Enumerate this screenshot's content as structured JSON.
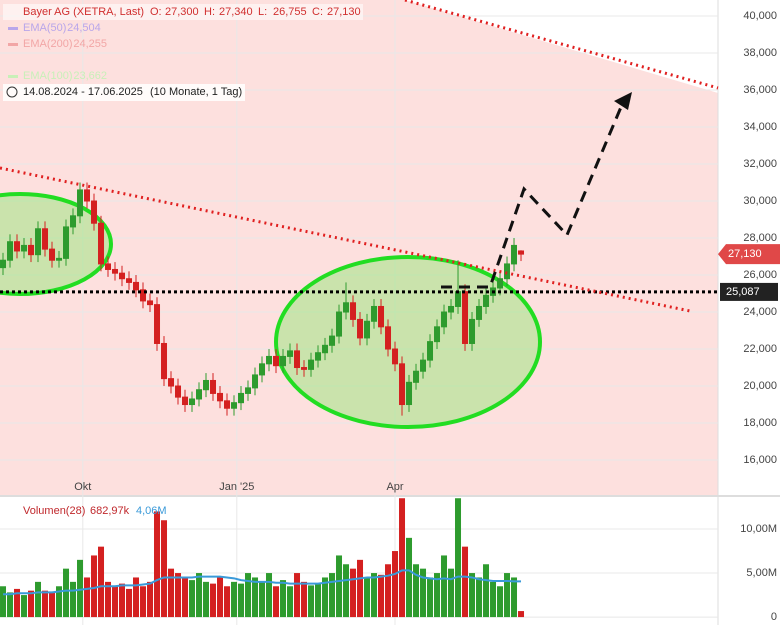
{
  "chart_data": [
    {
      "type": "candlestick",
      "title": "Bayer AG (XETRA, Last)",
      "ohlc_legend": [
        {
          "name": "O:",
          "value": 27.3,
          "label": "27,300"
        },
        {
          "name": "H:",
          "value": 27.34,
          "label": "27,340"
        },
        {
          "name": "L:",
          "value": 26.755,
          "label": "26,755"
        },
        {
          "name": "C:",
          "value": 27.13,
          "label": "27,130"
        }
      ],
      "legend": [
        {
          "name": "EMA(50)",
          "value": 24.504,
          "label": "24,504",
          "color": "#b9a6ea"
        },
        {
          "name": "EMA(200)",
          "value": 24.255,
          "label": "24,255",
          "color": "#f2a6a6"
        },
        {
          "name": "EMA(100)",
          "value": 23.662,
          "label": "23,662",
          "color": "#c8f0b8"
        }
      ],
      "range_text": "14.08.2024 - 17.06.2025",
      "range_note": "(10 Monate, 1 Tag)",
      "open": [
        26.4,
        26.8,
        27.8,
        27.3,
        27.6,
        27.1,
        28.5,
        27.4,
        26.8,
        26.9,
        28.6,
        29.2,
        30.6,
        30.0,
        28.8,
        26.6,
        26.3,
        26.1,
        25.8,
        25.6,
        25.2,
        24.6,
        24.4,
        22.3,
        20.4,
        20.0,
        19.4,
        19.0,
        19.3,
        19.8,
        20.3,
        19.6,
        19.2,
        18.8,
        19.1,
        19.6,
        19.9,
        20.6,
        21.2,
        21.6,
        21.1,
        21.6,
        21.9,
        21.0,
        20.9,
        21.4,
        21.8,
        22.2,
        22.7,
        24.0,
        24.5,
        23.6,
        22.6,
        23.5,
        24.3,
        23.2,
        22.0,
        21.2,
        19.0,
        20.2,
        20.8,
        21.4,
        22.4,
        23.2,
        24.0,
        24.3,
        25.1,
        22.3,
        23.6,
        24.3,
        24.9,
        25.3,
        25.8,
        26.6,
        27.3
      ],
      "high": [
        27.2,
        28.2,
        28.2,
        28.0,
        28.0,
        28.9,
        28.9,
        27.8,
        27.3,
        29.0,
        29.6,
        31.0,
        31.0,
        30.4,
        29.2,
        27.0,
        26.7,
        26.5,
        26.2,
        26.0,
        25.6,
        25.0,
        24.8,
        22.7,
        20.8,
        20.4,
        19.8,
        19.7,
        20.2,
        20.7,
        20.7,
        20.0,
        19.6,
        19.5,
        20.0,
        20.3,
        21.0,
        21.6,
        22.0,
        22.0,
        22.0,
        22.3,
        22.3,
        21.4,
        21.8,
        22.2,
        22.6,
        23.1,
        24.4,
        25.6,
        24.9,
        24.0,
        23.9,
        24.7,
        24.7,
        23.6,
        22.4,
        21.6,
        20.6,
        21.2,
        21.8,
        22.8,
        23.6,
        24.4,
        24.7,
        26.8,
        25.5,
        24.0,
        24.7,
        25.3,
        25.7,
        26.2,
        27.0,
        28.0,
        27.34
      ],
      "low": [
        26.0,
        26.4,
        26.9,
        26.9,
        26.7,
        26.7,
        27.0,
        26.4,
        26.4,
        26.5,
        28.2,
        28.8,
        29.6,
        28.4,
        26.2,
        25.9,
        25.7,
        25.4,
        25.2,
        24.8,
        24.2,
        24.0,
        21.9,
        20.0,
        19.6,
        19.0,
        18.6,
        18.6,
        18.9,
        19.4,
        19.2,
        18.8,
        18.4,
        18.4,
        18.7,
        19.2,
        19.5,
        20.2,
        20.8,
        20.7,
        20.7,
        21.2,
        20.6,
        20.5,
        20.5,
        21.0,
        21.4,
        21.8,
        22.3,
        23.6,
        23.2,
        22.2,
        22.2,
        23.1,
        22.8,
        21.6,
        20.8,
        18.4,
        18.6,
        19.8,
        20.4,
        21.0,
        22.0,
        22.8,
        23.6,
        23.9,
        21.9,
        21.9,
        23.2,
        23.9,
        24.5,
        24.9,
        25.4,
        26.2,
        26.755
      ],
      "close": [
        26.8,
        27.8,
        27.3,
        27.6,
        27.1,
        28.5,
        27.4,
        26.8,
        26.9,
        28.6,
        29.2,
        30.6,
        30.0,
        28.8,
        26.6,
        26.3,
        26.1,
        25.8,
        25.6,
        25.2,
        24.6,
        24.4,
        22.3,
        20.4,
        20.0,
        19.4,
        19.0,
        19.3,
        19.8,
        20.3,
        19.6,
        19.2,
        18.8,
        19.1,
        19.6,
        19.9,
        20.6,
        21.2,
        21.6,
        21.1,
        21.6,
        21.9,
        21.0,
        20.9,
        21.4,
        21.8,
        22.2,
        22.7,
        24.0,
        24.5,
        23.6,
        22.6,
        23.5,
        24.3,
        23.2,
        22.0,
        21.2,
        19.0,
        20.2,
        20.8,
        21.4,
        22.4,
        23.2,
        24.0,
        24.3,
        25.1,
        22.3,
        23.6,
        24.3,
        24.9,
        25.3,
        25.8,
        26.6,
        27.6,
        27.13
      ],
      "up_color": "#2e9b2e",
      "down_color": "#d42020",
      "xlim": [
        -0.43,
        102.14
      ],
      "ylim": [
        14.11,
        40.865
      ],
      "xticks": [
        {
          "value": 11.4,
          "label": "Okt"
        },
        {
          "value": 33.4,
          "label": "Jan '25"
        },
        {
          "value": 56,
          "label": "Apr"
        }
      ],
      "yticks": [
        {
          "value": 16,
          "label": "16,000"
        },
        {
          "value": 18,
          "label": "18,000"
        },
        {
          "value": 20,
          "label": "20,000"
        },
        {
          "value": 22,
          "label": "22,000"
        },
        {
          "value": 24,
          "label": "24,000"
        },
        {
          "value": 26,
          "label": "26,000"
        },
        {
          "value": 28,
          "label": "28,000"
        },
        {
          "value": 30,
          "label": "30,000"
        },
        {
          "value": 32,
          "label": "32,000"
        },
        {
          "value": 34,
          "label": "34,000"
        },
        {
          "value": 36,
          "label": "36,000"
        },
        {
          "value": 38,
          "label": "38,000"
        },
        {
          "value": 40,
          "label": "40,000"
        }
      ],
      "last_price": {
        "value": 27.13,
        "label": "27,130",
        "color": "#e04848"
      },
      "support": {
        "value": 25.087,
        "label": "25,087"
      }
    },
    {
      "type": "bar",
      "title": "Volumen(28)",
      "last_label": "682,97k",
      "avg_label": "4,06M",
      "values": [
        3.5,
        2.8,
        3.2,
        2.5,
        3.0,
        4.0,
        3.0,
        2.8,
        3.5,
        5.5,
        4.0,
        6.5,
        4.5,
        7.0,
        8.0,
        4.0,
        3.5,
        3.8,
        3.2,
        4.5,
        3.5,
        4.0,
        12.0,
        11.0,
        5.5,
        5.0,
        4.5,
        4.2,
        5.0,
        4.0,
        3.8,
        4.5,
        3.5,
        4.0,
        3.8,
        5.0,
        4.5,
        4.0,
        5.0,
        3.5,
        4.2,
        3.5,
        5.0,
        4.0,
        3.6,
        3.8,
        4.5,
        5.0,
        7.0,
        6.0,
        5.5,
        6.5,
        4.5,
        5.0,
        4.8,
        6.0,
        7.5,
        13.5,
        9.0,
        6.0,
        5.5,
        4.5,
        5.0,
        7.0,
        5.5,
        13.5,
        8.0,
        5.0,
        4.5,
        6.0,
        4.0,
        3.5,
        5.0,
        4.5,
        0.68297
      ],
      "avg": [
        2.6,
        2.6,
        2.7,
        2.7,
        2.7,
        2.8,
        2.8,
        2.8,
        2.9,
        3.0,
        3.0,
        3.1,
        3.2,
        3.3,
        3.5,
        3.5,
        3.5,
        3.6,
        3.6,
        3.6,
        3.7,
        3.8,
        4.2,
        4.5,
        4.5,
        4.5,
        4.5,
        4.5,
        4.6,
        4.6,
        4.6,
        4.6,
        4.5,
        4.4,
        4.2,
        4.1,
        4.0,
        4.0,
        4.0,
        3.9,
        3.9,
        3.8,
        3.8,
        3.8,
        3.8,
        3.8,
        3.9,
        4.0,
        4.1,
        4.2,
        4.3,
        4.4,
        4.5,
        4.5,
        4.6,
        4.7,
        4.9,
        5.3,
        5.3,
        4.8,
        4.5,
        4.4,
        4.3,
        4.4,
        4.3,
        4.6,
        4.6,
        4.5,
        4.3,
        4.2,
        4.1,
        4.1,
        4.1,
        4.06,
        4.06
      ],
      "avg_color": "#3a9ad9",
      "label_color": "#c0282c",
      "ylim": [
        -0.9,
        13.64
      ],
      "yticks": [
        0,
        {
          "value": 5,
          "label": "5,00M"
        },
        {
          "value": 10,
          "label": "10,00M"
        }
      ]
    }
  ]
}
